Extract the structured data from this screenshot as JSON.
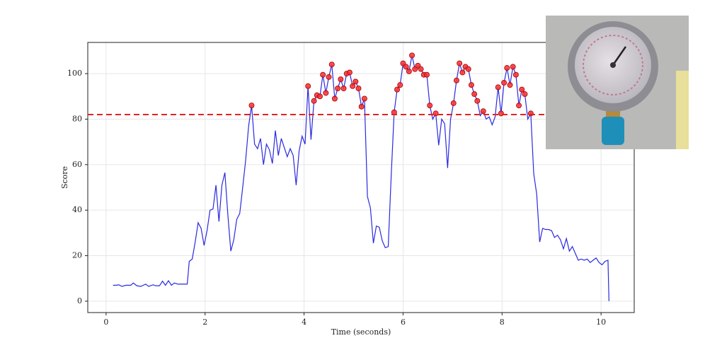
{
  "chart_data": {
    "type": "line",
    "xlabel": "Time (seconds)",
    "ylabel": "Score",
    "x": [
      0.14,
      0.2,
      0.26,
      0.32,
      0.4,
      0.5,
      0.55,
      0.62,
      0.7,
      0.8,
      0.86,
      0.95,
      1.0,
      1.08,
      1.14,
      1.2,
      1.26,
      1.32,
      1.38,
      1.45,
      1.52,
      1.6,
      1.64,
      1.68,
      1.74,
      1.8,
      1.86,
      1.92,
      1.98,
      2.04,
      2.1,
      2.16,
      2.22,
      2.28,
      2.34,
      2.4,
      2.46,
      2.52,
      2.58,
      2.64,
      2.7,
      2.76,
      2.82,
      2.88,
      2.94,
      3.0,
      3.06,
      3.12,
      3.18,
      3.24,
      3.3,
      3.36,
      3.42,
      3.48,
      3.54,
      3.6,
      3.66,
      3.72,
      3.78,
      3.84,
      3.9,
      3.96,
      4.02,
      4.08,
      4.14,
      4.2,
      4.26,
      4.32,
      4.38,
      4.44,
      4.5,
      4.56,
      4.62,
      4.68,
      4.74,
      4.8,
      4.86,
      4.92,
      4.98,
      5.04,
      5.1,
      5.16,
      5.22,
      5.28,
      5.34,
      5.4,
      5.46,
      5.52,
      5.58,
      5.64,
      5.7,
      5.76,
      5.82,
      5.88,
      5.94,
      6.0,
      6.06,
      6.12,
      6.18,
      6.24,
      6.3,
      6.36,
      6.42,
      6.48,
      6.54,
      6.6,
      6.66,
      6.72,
      6.78,
      6.84,
      6.9,
      6.96,
      7.02,
      7.08,
      7.14,
      7.2,
      7.26,
      7.32,
      7.38,
      7.44,
      7.5,
      7.56,
      7.62,
      7.68,
      7.74,
      7.8,
      7.86,
      7.92,
      7.98,
      8.04,
      8.1,
      8.16,
      8.22,
      8.28,
      8.34,
      8.4,
      8.46,
      8.52,
      8.58,
      8.64,
      8.7,
      8.76,
      8.82,
      8.88,
      8.94,
      9.0,
      9.06,
      9.12,
      9.18,
      9.24,
      9.3,
      9.36,
      9.42,
      9.48,
      9.54,
      9.6,
      9.66,
      9.72,
      9.78,
      9.84,
      9.9,
      9.96,
      10.02,
      10.08,
      10.14,
      10.16
    ],
    "series": [
      {
        "color": "#2a2ae0",
        "values": [
          7,
          7,
          7.2,
          6.5,
          7,
          7,
          8,
          6.8,
          6.5,
          7.5,
          6.5,
          7.2,
          6.8,
          6.8,
          8.8,
          7,
          9,
          7,
          8,
          7.5,
          7.5,
          7.5,
          7.5,
          17.5,
          18.5,
          26,
          34.5,
          32,
          24.5,
          31,
          40,
          40.5,
          51,
          35,
          51,
          56.5,
          38,
          22,
          27,
          36,
          38.5,
          50,
          62,
          77,
          86,
          69,
          67,
          71.5,
          60,
          69,
          66.5,
          60.5,
          75,
          64,
          71.5,
          67.5,
          63.5,
          67,
          64,
          51,
          66,
          72.5,
          69,
          94.5,
          71,
          88,
          90.5,
          90,
          99.5,
          91.5,
          98.5,
          104,
          89,
          93.5,
          97.5,
          93.5,
          100,
          100.5,
          94.5,
          96.5,
          93.5,
          85.5,
          89,
          46,
          41,
          25.5,
          33,
          32.5,
          26.5,
          23.5,
          24,
          55,
          83,
          93,
          95,
          104.5,
          103,
          101,
          108,
          102,
          103.5,
          102,
          99.5,
          99.5,
          86,
          80,
          82.5,
          68.5,
          80,
          78,
          58.5,
          80,
          87,
          97,
          104.5,
          100.5,
          103,
          102,
          95,
          91,
          88,
          81.5,
          83.5,
          80,
          81,
          77.5,
          81,
          94,
          82.5,
          96,
          102.5,
          95,
          103,
          99.5,
          86,
          93,
          91,
          80,
          82.5,
          56,
          47,
          26,
          32,
          31.5,
          31.5,
          31,
          28,
          29,
          27,
          23,
          27.5,
          22,
          24,
          21,
          18,
          18.5,
          18,
          18.5,
          17,
          18,
          19,
          17,
          16,
          17.5,
          18,
          0
        ]
      }
    ],
    "threshold": {
      "value": 82,
      "color": "#e62222",
      "marker_color": "#ff3030"
    },
    "xlim": [
      -0.37,
      10.67
    ],
    "ylim": [
      -5,
      113.7
    ],
    "xticks": [
      0,
      2,
      4,
      6,
      8,
      10
    ],
    "yticks": [
      0,
      20,
      40,
      60,
      80,
      100
    ],
    "grid": true
  }
}
